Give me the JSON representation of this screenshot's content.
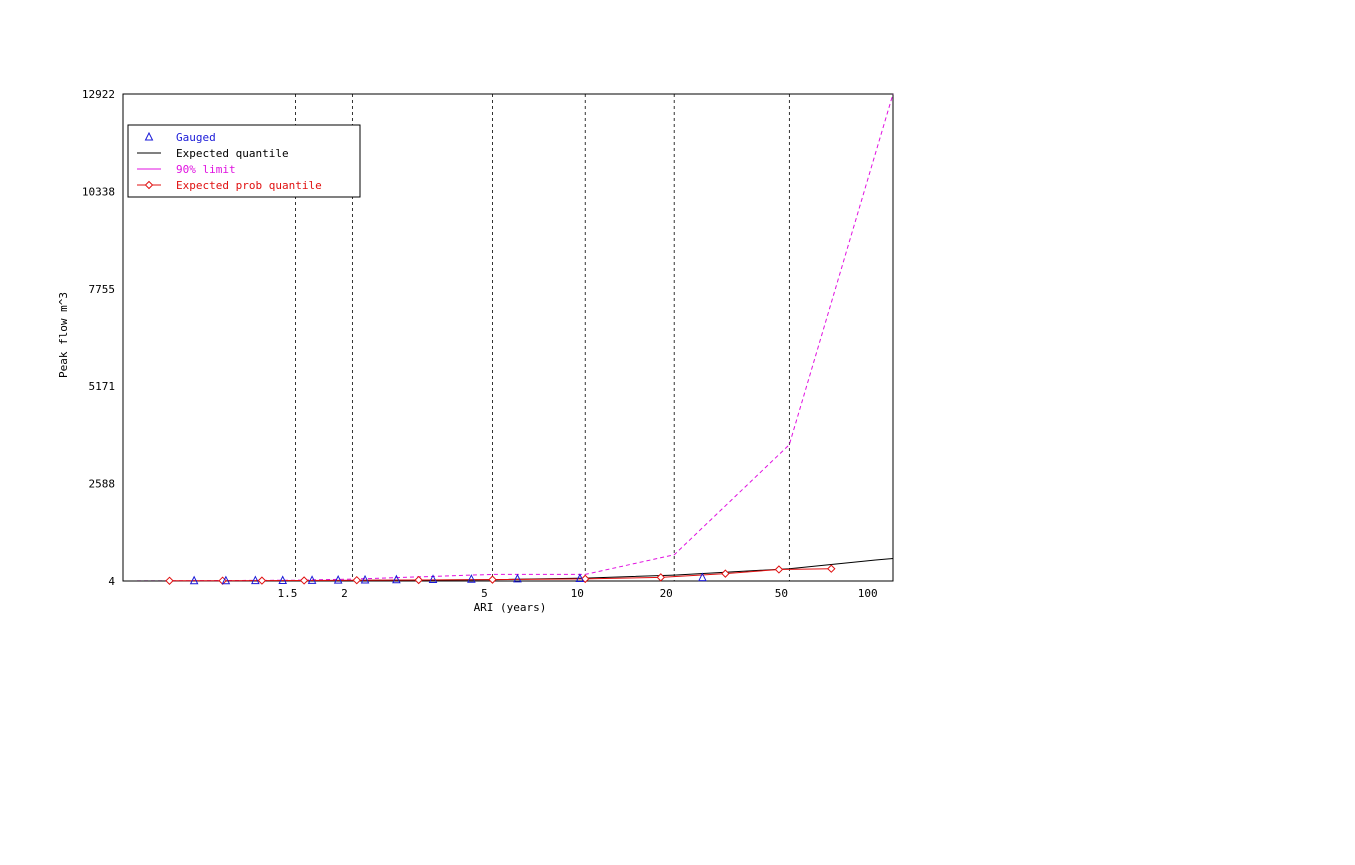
{
  "chart_data": {
    "type": "line",
    "title": "",
    "xlabel": "ARI (years)",
    "ylabel": "Peak flow m^3",
    "xscale": "gumbel-ari",
    "xlim": [
      1.012,
      115
    ],
    "ylim": [
      4,
      12922
    ],
    "x_tick_labels": [
      {
        "value": 1.5,
        "label": "1.5"
      },
      {
        "value": 2,
        "label": "2"
      },
      {
        "value": 5,
        "label": "5"
      },
      {
        "value": 10,
        "label": "10"
      },
      {
        "value": 20,
        "label": "20"
      },
      {
        "value": 50,
        "label": "50"
      },
      {
        "value": 100,
        "label": "100"
      }
    ],
    "x_gridlines": [
      1.5,
      2,
      5,
      10,
      20,
      50
    ],
    "y_tick_labels": [
      {
        "value": 4,
        "label": "4"
      },
      {
        "value": 2588,
        "label": "2588"
      },
      {
        "value": 5171,
        "label": "5171"
      },
      {
        "value": 7755,
        "label": "7755"
      },
      {
        "value": 10338,
        "label": "10338"
      },
      {
        "value": 12922,
        "label": "12922"
      }
    ],
    "legend": {
      "position": "top-left",
      "entries": [
        {
          "key": "gauged",
          "label": "Gauged",
          "color": "#1a1ad8"
        },
        {
          "key": "expected",
          "label": "Expected quantile",
          "color": "#000000"
        },
        {
          "key": "limit90",
          "label": "90% limit",
          "color": "#e010e0"
        },
        {
          "key": "expprob",
          "label": "Expected prob quantile",
          "color": "#e01010"
        }
      ]
    },
    "series": [
      {
        "name": "Gauged",
        "style": "markers-triangle",
        "color": "#1a1ad8",
        "x": [
          1.09,
          1.17,
          1.28,
          1.42,
          1.62,
          1.85,
          2.15,
          2.6,
          3.3,
          4.3,
          6.0,
          9.6,
          25
        ],
        "y": [
          10,
          12,
          15,
          18,
          22,
          27,
          32,
          38,
          45,
          52,
          60,
          70,
          95
        ]
      },
      {
        "name": "Expected quantile",
        "style": "solid",
        "color": "#000000",
        "x": [
          1.012,
          1.5,
          2,
          5,
          10,
          20,
          50,
          100,
          115
        ],
        "y": [
          4,
          10,
          18,
          40,
          80,
          160,
          330,
          560,
          600
        ]
      },
      {
        "name": "90% limit",
        "style": "dashed",
        "color": "#e010e0",
        "x": [
          1.012,
          1.5,
          2,
          5,
          10,
          20,
          50,
          115
        ],
        "y": [
          4,
          25,
          55,
          180,
          180,
          700,
          3620,
          12922
        ]
      },
      {
        "name": "Expected prob quantile",
        "style": "line-markers-diamond",
        "color": "#e01010",
        "x": [
          1.05,
          1.16,
          1.31,
          1.56,
          2.05,
          3.0,
          5.0,
          10.0,
          18.0,
          30.0,
          46.0,
          70.0
        ],
        "y": [
          10,
          12,
          15,
          18,
          25,
          30,
          40,
          60,
          100,
          200,
          310,
          330
        ]
      }
    ]
  }
}
